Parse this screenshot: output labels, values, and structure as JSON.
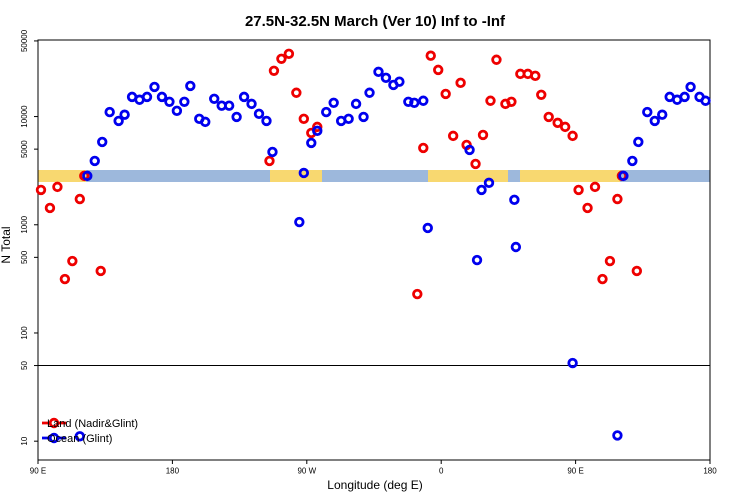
{
  "chart_data": {
    "type": "scatter",
    "title": "27.5N-32.5N March (Ver 10)   Inf to -Inf",
    "xlabel": "Longitude (deg E)",
    "ylabel": "N Total",
    "log_y": true,
    "hline": 50,
    "legend": "lower left",
    "xlim": [
      90,
      540
    ],
    "ylim": [
      6.7,
      51000
    ],
    "xticks": [
      {
        "value": 90,
        "label": "90 E"
      },
      {
        "value": 180,
        "label": "180"
      },
      {
        "value": 270,
        "label": "90 W"
      },
      {
        "value": 360,
        "label": "0"
      },
      {
        "value": 450,
        "label": "90 E"
      },
      {
        "value": 540,
        "label": "180"
      }
    ],
    "yticks": [
      10,
      50,
      100,
      500,
      1000,
      5000,
      10000,
      50000
    ],
    "series": [
      {
        "name": "Land (Nadir&Glint)",
        "color": "#ee0000",
        "x": [
          92,
          98,
          103,
          108,
          113,
          118,
          121,
          132,
          245,
          248,
          253,
          258,
          263,
          268,
          273,
          277,
          344,
          348,
          353,
          358,
          363,
          368,
          373,
          377,
          383,
          388,
          393,
          397,
          403,
          407,
          413,
          418,
          423,
          427,
          432,
          438,
          443,
          448,
          452,
          458,
          463,
          468,
          473,
          478,
          481,
          491
        ],
        "values": [
          2100,
          1430,
          2240,
          315,
          462,
          1730,
          2830,
          374,
          3890,
          26500,
          34200,
          38000,
          16600,
          9530,
          7060,
          8030,
          229,
          5130,
          36500,
          27000,
          16200,
          6630,
          20500,
          5470,
          3650,
          6770,
          14000,
          33500,
          13100,
          13700,
          24800,
          24800,
          23800,
          15900,
          9930,
          8750,
          8030,
          6630,
          2100,
          1430,
          2240,
          315,
          462,
          1730,
          2830,
          374
        ]
      },
      {
        "name": "Ocean (Glint)",
        "color": "#0000ee",
        "x": [
          118,
          123,
          128,
          133,
          138,
          144,
          148,
          153,
          158,
          163,
          168,
          173,
          178,
          183,
          188,
          192,
          198,
          202,
          208,
          213,
          218,
          223,
          228,
          233,
          238,
          243,
          247,
          265,
          268,
          273,
          277,
          283,
          288,
          293,
          298,
          303,
          308,
          312,
          318,
          323,
          328,
          332,
          338,
          342,
          348,
          351,
          379,
          384,
          387,
          392,
          409,
          410,
          448,
          478,
          482,
          488,
          492,
          498,
          503,
          508,
          513,
          518,
          523,
          527,
          533,
          537
        ],
        "values": [
          11.1,
          2830,
          3890,
          5830,
          11000,
          9120,
          10400,
          15200,
          14300,
          15200,
          18800,
          15200,
          13700,
          11300,
          13700,
          19200,
          9530,
          8930,
          14600,
          12600,
          12600,
          9930,
          15200,
          13100,
          10600,
          9120,
          4710,
          1060,
          3010,
          5710,
          7380,
          11000,
          13400,
          9120,
          9530,
          13100,
          9930,
          16600,
          25900,
          22800,
          19600,
          21000,
          13700,
          13400,
          14000,
          934,
          4920,
          472,
          2100,
          2440,
          1700,
          623,
          52.7,
          11.3,
          2830,
          3890,
          5830,
          11000,
          9120,
          10400,
          15200,
          14300,
          15200,
          18800,
          15200,
          14000
        ]
      }
    ]
  }
}
